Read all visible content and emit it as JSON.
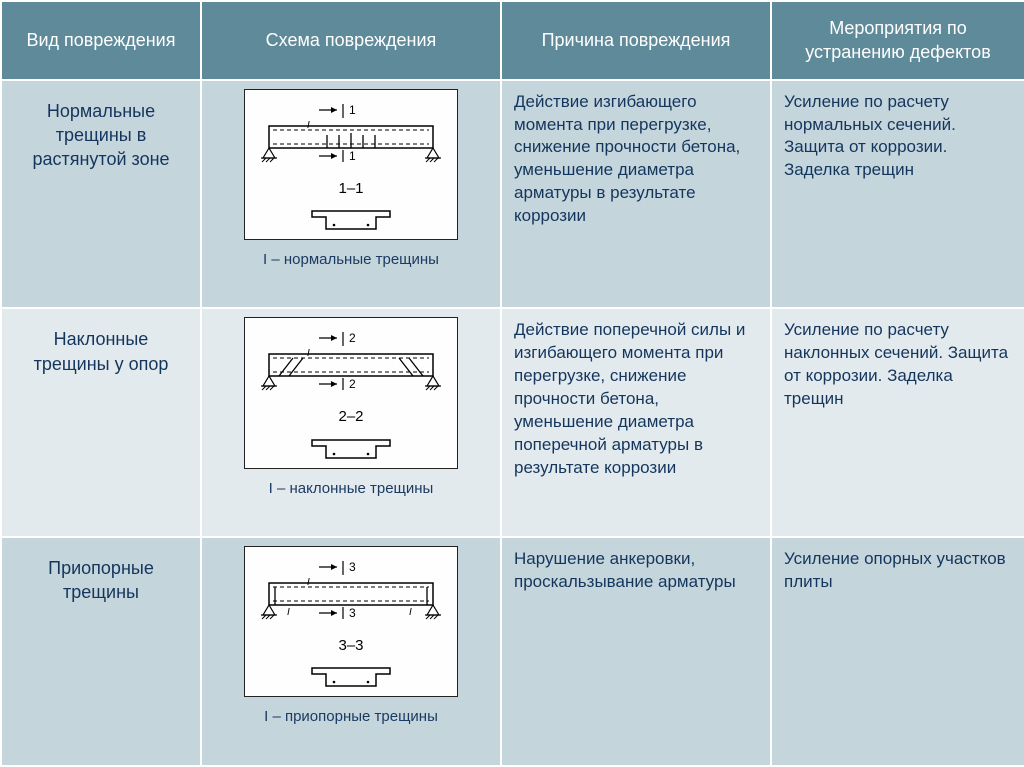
{
  "headers": {
    "col1": "Вид повреждения",
    "col2": "Схема повреждения",
    "col3": "Причина повреждения",
    "col4": "Мероприятия по устранению дефектов"
  },
  "rows": [
    {
      "type": "Нормальные трещины в растянутой зоне",
      "caption": "I – нормальные трещины",
      "sec_label": "1–1",
      "beam_marks": [
        "1",
        "1"
      ],
      "cause": "Действие изгибающего момента при перегрузке, снижение прочности бетона, уменьшение диаметра арматуры в результате коррозии",
      "fix": "Усиление по расчету нормальных сечений. Защита от коррозии. Заделка трещин",
      "crack_style": "normal"
    },
    {
      "type": "Наклонные трещины у опор",
      "caption": "I – наклонные трещины",
      "sec_label": "2–2",
      "beam_marks": [
        "2",
        "2"
      ],
      "cause": "Действие поперечной силы и изгибающего момента при перегрузке, снижение прочности бетона, уменьшение диаметра поперечной арматуры в результате коррозии",
      "fix": "Усиление по расчету наклонных сечений. Защита от коррозии. Заделка трещин",
      "crack_style": "inclined"
    },
    {
      "type": "Приопорные трещины",
      "caption": "I – приопорные трещины",
      "sec_label": "3–3",
      "beam_marks": [
        "3",
        "3"
      ],
      "cause": "Нарушение анкеровки, проскальзывание арматуры",
      "fix": "Усиление опорных участков плиты",
      "crack_style": "support"
    }
  ],
  "style": {
    "header_bg": "#5f8a99",
    "header_fg": "#ffffff",
    "row_even_bg": "#c5d5dc",
    "row_odd_bg": "#e3eaee",
    "border_color": "#ffffff",
    "text_color": "#14365d",
    "diagram_bg": "#fefefe",
    "stroke": "#000000"
  }
}
